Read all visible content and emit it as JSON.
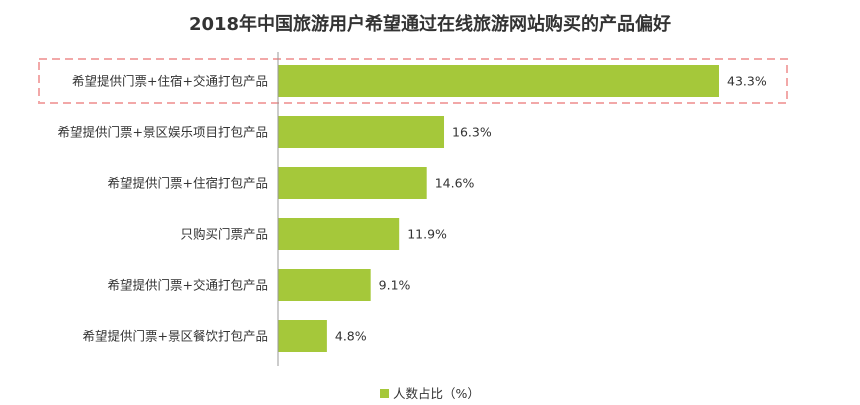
{
  "chart_data": {
    "type": "bar",
    "orientation": "horizontal",
    "title": "2018年中国旅游用户希望通过在线旅游网站购买的产品偏好",
    "categories": [
      "希望提供门票+住宿+交通打包产品",
      "希望提供门票+景区娱乐项目打包产品",
      "希望提供门票+住宿打包产品",
      "只购买门票产品",
      "希望提供门票+交通打包产品",
      "希望提供门票+景区餐饮打包产品"
    ],
    "series": [
      {
        "name": "人数占比（%）",
        "values": [
          43.3,
          16.3,
          14.6,
          11.9,
          9.1,
          4.8
        ]
      }
    ],
    "value_suffix": "%",
    "xlim": [
      0,
      50
    ],
    "grid": false,
    "legend_position": "bottom",
    "highlighted_category": "希望提供门票+住宿+交通打包产品",
    "colors": {
      "bar": "#a5c83a",
      "highlight": "#f2a8a8",
      "axis": "#999999"
    }
  }
}
